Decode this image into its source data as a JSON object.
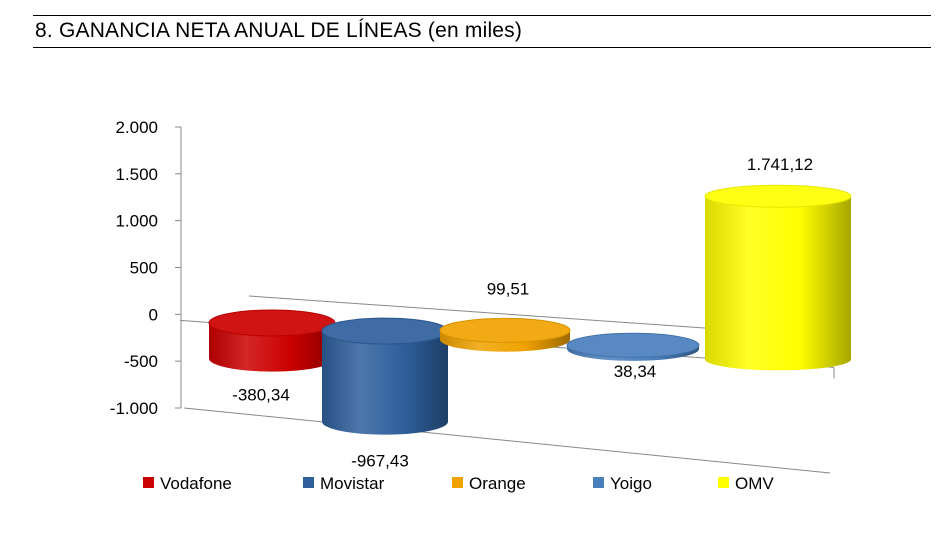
{
  "page_title": "8. GANANCIA NETA ANUAL DE LÍNEAS (en miles)",
  "chart_data": {
    "type": "bar",
    "bar_shape": "3d-cylinder",
    "title": "8. GANANCIA NETA ANUAL DE LÍNEAS (en miles)",
    "xlabel": "",
    "ylabel": "",
    "ylim": [
      -1000,
      2000
    ],
    "y_ticks": [
      2000,
      1500,
      1000,
      500,
      0,
      -500,
      -1000
    ],
    "y_tick_labels": [
      "2.000",
      "1.500",
      "1.000",
      "500",
      "0",
      "-500",
      "-1.000"
    ],
    "grid": false,
    "legend_position": "bottom",
    "categories": [
      "Vodafone",
      "Movistar",
      "Orange",
      "Yoigo",
      "OMV"
    ],
    "series": [
      {
        "name": "Vodafone",
        "value": -380.34,
        "label": "-380,34",
        "color": "#cc0000"
      },
      {
        "name": "Movistar",
        "value": -967.43,
        "label": "-967,43",
        "color": "#2e5f9c"
      },
      {
        "name": "Orange",
        "value": 99.51,
        "label": "99,51",
        "color": "#f0a200"
      },
      {
        "name": "Yoigo",
        "value": 38.34,
        "label": "38,34",
        "color": "#4a7fbd"
      },
      {
        "name": "OMV",
        "value": 1741.12,
        "label": "1.741,12",
        "color": "#ffff00"
      }
    ]
  }
}
